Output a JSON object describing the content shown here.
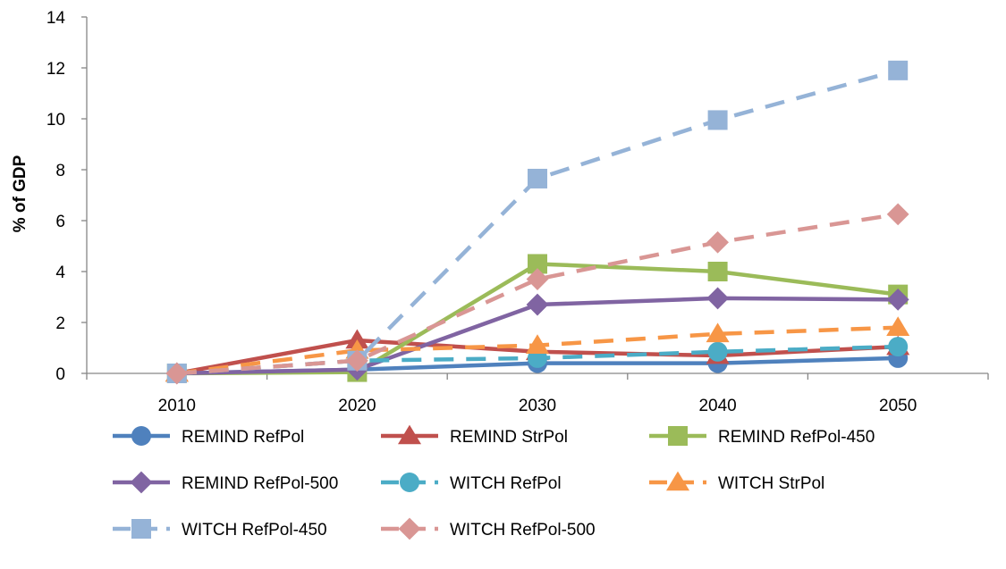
{
  "chart_data": {
    "type": "line",
    "title": "",
    "xlabel": "",
    "ylabel": "% of GDP",
    "categories": [
      "2010",
      "2020",
      "2030",
      "2040",
      "2050"
    ],
    "ylim": [
      0,
      14
    ],
    "yticks": [
      0,
      2,
      4,
      6,
      8,
      10,
      12,
      14
    ],
    "grid": false,
    "legend_position": "bottom",
    "series": [
      {
        "name": "REMIND RefPol",
        "values": [
          0,
          0.15,
          0.4,
          0.4,
          0.6
        ],
        "color": "#4F81BD",
        "dash": "solid",
        "marker": "circle"
      },
      {
        "name": "REMIND StrPol",
        "values": [
          0,
          1.3,
          0.85,
          0.7,
          1.05
        ],
        "color": "#C0504D",
        "dash": "solid",
        "marker": "triangle"
      },
      {
        "name": "REMIND RefPol-450",
        "values": [
          0,
          0.05,
          4.3,
          4.0,
          3.1
        ],
        "color": "#9BBB59",
        "dash": "solid",
        "marker": "square"
      },
      {
        "name": "REMIND RefPol-500",
        "values": [
          0,
          0.15,
          2.7,
          2.95,
          2.9
        ],
        "color": "#8064A2",
        "dash": "solid",
        "marker": "diamond"
      },
      {
        "name": "WITCH RefPol",
        "values": [
          0,
          0.5,
          0.6,
          0.85,
          1.05
        ],
        "color": "#4BACC6",
        "dash": "dashed",
        "marker": "circle"
      },
      {
        "name": "WITCH StrPol",
        "values": [
          0,
          0.9,
          1.1,
          1.55,
          1.8
        ],
        "color": "#F79646",
        "dash": "dashed",
        "marker": "triangle"
      },
      {
        "name": "WITCH RefPol-450",
        "values": [
          0,
          0.5,
          7.65,
          9.95,
          11.9
        ],
        "color": "#95B3D7",
        "dash": "dashed",
        "marker": "square"
      },
      {
        "name": "WITCH RefPol-500",
        "values": [
          0,
          0.5,
          3.7,
          5.15,
          6.25
        ],
        "color": "#D99694",
        "dash": "dashed",
        "marker": "diamond"
      }
    ]
  }
}
